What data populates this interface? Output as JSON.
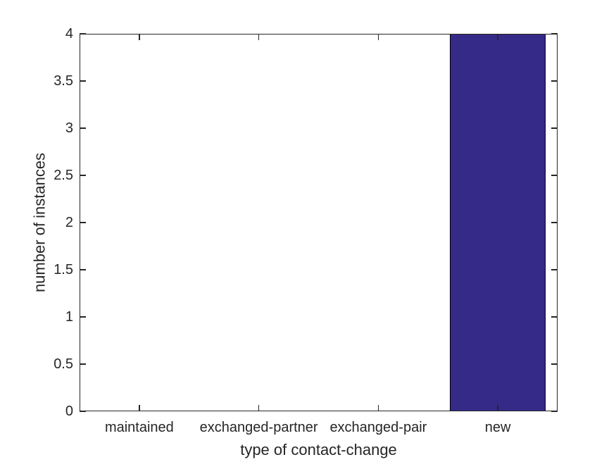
{
  "chart_data": {
    "type": "bar",
    "title": "",
    "categories": [
      "maintained",
      "exchanged-partner",
      "exchanged-pair",
      "new"
    ],
    "values": [
      0,
      0,
      0,
      4
    ],
    "xlabel": "type of contact-change",
    "ylabel": "number of instances",
    "ylim": [
      0,
      4
    ],
    "yticks": [
      0,
      0.5,
      1,
      1.5,
      2,
      2.5,
      3,
      3.5,
      4
    ],
    "bar_width_fraction": 0.8,
    "legend": null,
    "grid": false,
    "box": true,
    "tick_direction": "in",
    "bar_color": "#352A87",
    "bar_edge_color": "#000000",
    "axis_color": "#262626",
    "text_color": "#262626",
    "background_color": "#FFFFFF"
  }
}
